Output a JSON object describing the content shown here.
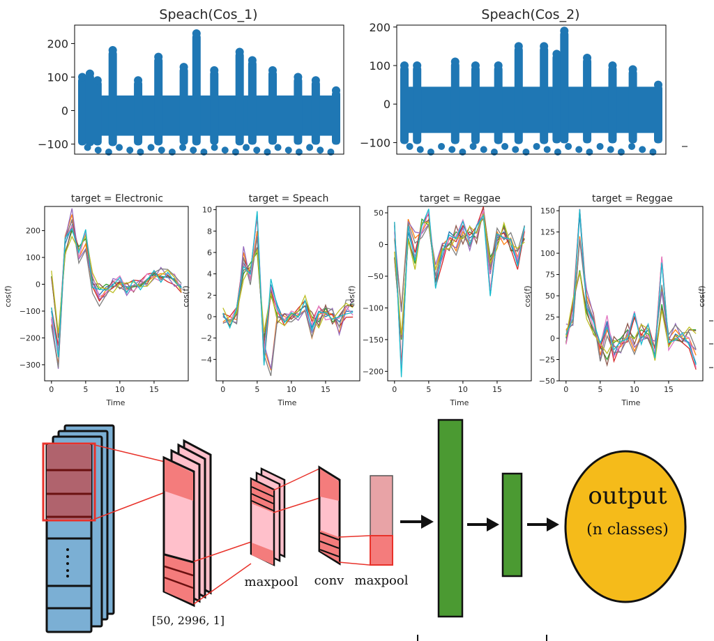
{
  "chart_data": [
    {
      "type": "scatter",
      "title": "Speach(Cos_1)",
      "xlabel": "",
      "ylabel": "",
      "ylim": [
        -130,
        255
      ],
      "yticks": [
        200,
        100,
        0,
        -100
      ],
      "tick_labels": [
        "200",
        "100",
        "0",
        "−100"
      ],
      "color": "#1f77b4",
      "spikes": [
        [
          0.0,
          -20,
          100
        ],
        [
          0.03,
          -30,
          110
        ],
        [
          0.06,
          -20,
          90
        ],
        [
          0.12,
          -30,
          180
        ],
        [
          0.22,
          -20,
          90
        ],
        [
          0.3,
          -20,
          160
        ],
        [
          0.4,
          -10,
          130
        ],
        [
          0.45,
          -20,
          230
        ],
        [
          0.52,
          -10,
          120
        ],
        [
          0.62,
          -20,
          175
        ],
        [
          0.67,
          -10,
          150
        ],
        [
          0.75,
          -10,
          120
        ],
        [
          0.85,
          -10,
          100
        ],
        [
          0.92,
          -10,
          90
        ],
        [
          1.0,
          -10,
          60
        ]
      ]
    },
    {
      "type": "scatter",
      "title": "Speach(Cos_2)",
      "xlabel": "",
      "ylabel": "",
      "ylim": [
        -130,
        205
      ],
      "yticks": [
        200,
        100,
        0,
        -100
      ],
      "tick_labels": [
        "200",
        "100",
        "0",
        "−100"
      ],
      "color": "#1f77b4",
      "spikes": [
        [
          0.0,
          -20,
          100
        ],
        [
          0.05,
          -20,
          100
        ],
        [
          0.2,
          -20,
          110
        ],
        [
          0.28,
          -20,
          100
        ],
        [
          0.37,
          -20,
          100
        ],
        [
          0.45,
          -20,
          150
        ],
        [
          0.55,
          -20,
          150
        ],
        [
          0.6,
          -10,
          130
        ],
        [
          0.63,
          -10,
          190
        ],
        [
          0.72,
          -10,
          120
        ],
        [
          0.82,
          -10,
          100
        ],
        [
          0.9,
          -10,
          90
        ],
        [
          1.0,
          -10,
          50
        ]
      ]
    },
    {
      "type": "line",
      "title": "target = Electronic",
      "xlabel": "Time",
      "ylabel": "cos(f)",
      "xlim": [
        -1,
        20
      ],
      "ylim": [
        -360,
        290
      ],
      "xticks": [
        0,
        5,
        10,
        15
      ],
      "yticks": [
        200,
        100,
        0,
        -100,
        -200,
        -300
      ],
      "tick_labels": [
        "200",
        "100",
        "0",
        "−100",
        "−200",
        "−300"
      ],
      "x": [
        0,
        1,
        2,
        3,
        4,
        5,
        6,
        7,
        8,
        9,
        10,
        11,
        12,
        13,
        14,
        15,
        16,
        17,
        18,
        19
      ],
      "series": [
        {
          "values": [
            -100,
            -250,
            150,
            220,
            120,
            190,
            10,
            -40,
            -10,
            0,
            10,
            -10,
            -5,
            -10,
            20,
            35,
            30,
            25,
            20,
            -10
          ]
        },
        {
          "values": [
            -150,
            -300,
            180,
            260,
            100,
            150,
            -10,
            -60,
            -20,
            10,
            0,
            -20,
            -5,
            -5,
            10,
            30,
            40,
            35,
            10,
            -20
          ]
        },
        {
          "values": [
            30,
            -200,
            120,
            200,
            140,
            170,
            20,
            -20,
            0,
            -10,
            5,
            -15,
            -10,
            -5,
            15,
            40,
            25,
            30,
            15,
            -15
          ]
        }
      ]
    },
    {
      "type": "line",
      "title": "target = Speach",
      "xlabel": "Time",
      "ylabel": "cos(f)",
      "xlim": [
        -1,
        20
      ],
      "ylim": [
        -6,
        10.3
      ],
      "xticks": [
        0,
        5,
        10,
        15
      ],
      "yticks": [
        10,
        8,
        6,
        4,
        2,
        0,
        -2,
        -4
      ],
      "tick_labels": [
        "10",
        "8",
        "6",
        "4",
        "2",
        "0",
        "−2",
        "−4"
      ],
      "x": [
        0,
        1,
        2,
        3,
        4,
        5,
        6,
        7,
        8,
        9,
        10,
        11,
        12,
        13,
        14,
        15,
        16,
        17,
        18,
        19
      ],
      "series": [
        {
          "values": [
            0,
            -0.5,
            0.3,
            5,
            4,
            9.5,
            -4,
            3,
            1,
            -0.5,
            0,
            0.5,
            1,
            -1,
            0.5,
            0,
            0.3,
            -0.5,
            0.5,
            0.5
          ]
        },
        {
          "values": [
            -0.5,
            0,
            -0.3,
            6,
            3.5,
            8,
            -3,
            -5,
            0.5,
            0,
            -0.2,
            0.2,
            0.6,
            -2,
            0.2,
            0.5,
            0.2,
            -1.5,
            1,
            1
          ]
        },
        {
          "values": [
            0.3,
            -1,
            0.5,
            4,
            5,
            6,
            -2,
            2,
            0,
            -0.3,
            0.3,
            0,
            1.5,
            0,
            -0.5,
            0.8,
            -0.5,
            0,
            1,
            1.2
          ]
        }
      ]
    },
    {
      "type": "line",
      "title": "target = Reggae",
      "xlabel": "Time",
      "ylabel": "cos(f)",
      "xlim": [
        -1,
        20
      ],
      "ylim": [
        -215,
        60
      ],
      "xticks": [
        0,
        5,
        10,
        15
      ],
      "yticks": [
        50,
        0,
        -50,
        -100,
        -150,
        -200
      ],
      "tick_labels": [
        "50",
        "0",
        "−50",
        "−100",
        "−150",
        "−200"
      ],
      "x": [
        0,
        1,
        2,
        3,
        4,
        5,
        6,
        7,
        8,
        9,
        10,
        11,
        12,
        13,
        14,
        15,
        16,
        17,
        18,
        19
      ],
      "series": [
        {
          "values": [
            30,
            -200,
            20,
            -20,
            30,
            50,
            -60,
            -20,
            20,
            10,
            30,
            10,
            20,
            50,
            -80,
            10,
            20,
            0,
            -30,
            30
          ]
        },
        {
          "values": [
            10,
            -100,
            40,
            10,
            20,
            40,
            -40,
            0,
            10,
            -10,
            20,
            0,
            30,
            40,
            -40,
            20,
            0,
            10,
            -20,
            20
          ]
        },
        {
          "values": [
            -20,
            -150,
            10,
            -30,
            40,
            30,
            -50,
            -10,
            0,
            20,
            10,
            20,
            10,
            50,
            -20,
            0,
            30,
            -10,
            -10,
            10
          ]
        }
      ]
    },
    {
      "type": "line",
      "title": "target = Reggae",
      "xlabel": "Time",
      "ylabel": "cos(f)",
      "xlim": [
        -1,
        20
      ],
      "ylim": [
        -50,
        155
      ],
      "xticks": [
        0,
        5,
        10,
        15
      ],
      "yticks": [
        150,
        125,
        100,
        75,
        50,
        25,
        0,
        -25,
        -50
      ],
      "tick_labels": [
        "150",
        "125",
        "100",
        "75",
        "50",
        "25",
        "0",
        "−25",
        "−50"
      ],
      "x": [
        0,
        1,
        2,
        3,
        4,
        5,
        6,
        7,
        8,
        9,
        10,
        11,
        12,
        13,
        14,
        15,
        16,
        17,
        18,
        19
      ],
      "series": [
        {
          "values": [
            0,
            30,
            145,
            40,
            20,
            -10,
            20,
            -20,
            0,
            0,
            25,
            0,
            10,
            -20,
            90,
            -10,
            5,
            0,
            -5,
            -30
          ]
        },
        {
          "values": [
            10,
            20,
            120,
            50,
            30,
            -20,
            10,
            -10,
            -10,
            5,
            -15,
            5,
            0,
            -10,
            60,
            0,
            10,
            0,
            0,
            -20
          ]
        },
        {
          "values": [
            -5,
            40,
            80,
            30,
            10,
            -10,
            -25,
            -5,
            0,
            10,
            0,
            10,
            5,
            -25,
            40,
            -5,
            0,
            -5,
            10,
            10
          ]
        }
      ]
    }
  ],
  "diagram": {
    "label_input_shape": "[50, 2996, 1]",
    "label_maxpool_1": "maxpool",
    "label_conv": "conv",
    "label_maxpool_2": "maxpool",
    "output_line1": "output",
    "output_line2": "(n classes)"
  },
  "colors": {
    "series": [
      "#1f77b4",
      "#ff7f0e",
      "#2ca02c",
      "#d62728",
      "#9467bd",
      "#8c564b",
      "#e377c2",
      "#7f7f7f",
      "#bcbd22",
      "#17becf"
    ],
    "input_block": "#7bafd4",
    "pink": "#ffc0cb",
    "pink_dark": "#f47c7c",
    "red_outline": "#e8322a",
    "green": "#4b9a32",
    "output_fill": "#f5bb1a"
  }
}
